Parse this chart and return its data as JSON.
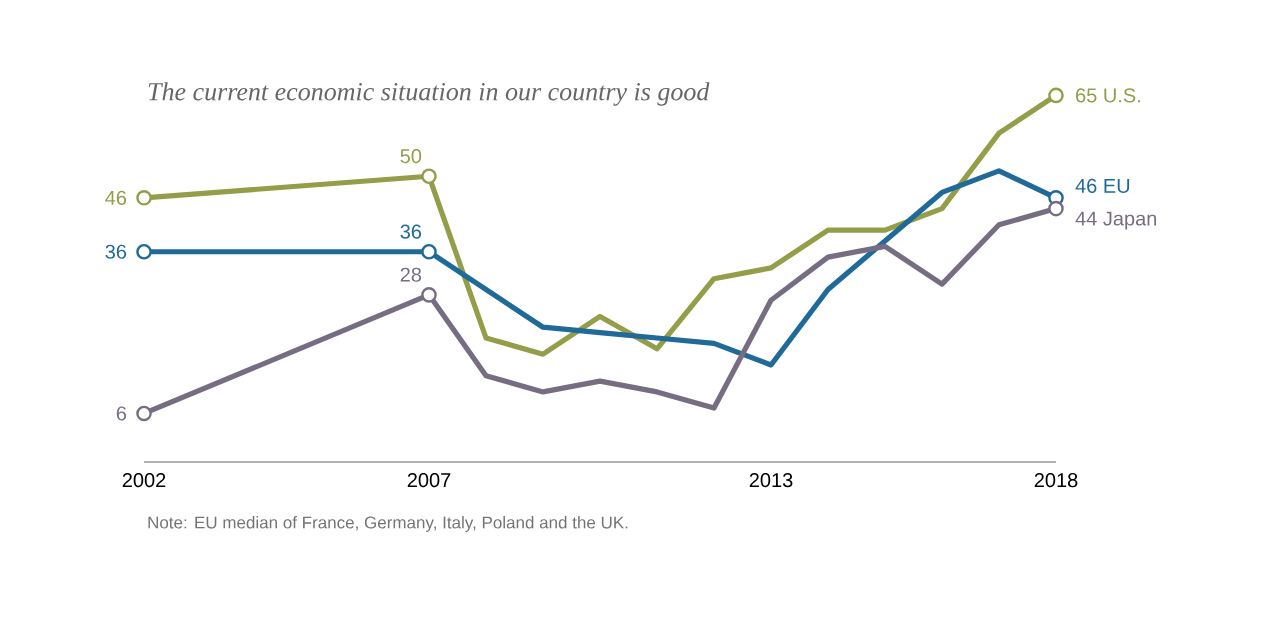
{
  "chart_data": {
    "type": "line",
    "title": "*The current economic situation in our country is good*",
    "x": [
      2002,
      2007,
      2008,
      2009,
      2010,
      2011,
      2012,
      2013,
      2014,
      2015,
      2016,
      2017,
      2018
    ],
    "xlim": [
      2002,
      2018
    ],
    "xticks": [
      2002,
      2007,
      2013,
      2018
    ],
    "tick_labels": "x",
    "line_style": "solid",
    "series": [
      {
        "name": "U.S.",
        "color": "#949d48",
        "values": [
          46,
          50,
          20,
          17,
          24,
          18,
          31,
          33,
          40,
          40,
          44,
          58,
          65
        ],
        "value_labels": [
          "46",
          "50",
          null,
          null,
          null,
          null,
          null,
          null,
          null,
          null,
          null,
          null,
          "65"
        ]
      },
      {
        "name": "EU",
        "color": "#1f6a98",
        "x": [
          2002,
          2007,
          2009,
          2010,
          2011,
          2012,
          2013,
          2014,
          2015,
          2016,
          2017,
          2018
        ],
        "values": [
          36,
          36,
          22,
          21,
          20,
          19,
          15,
          29,
          38,
          47,
          51,
          46
        ],
        "value_labels": [
          "36",
          "36",
          null,
          null,
          null,
          null,
          null,
          null,
          null,
          null,
          null,
          "46"
        ]
      },
      {
        "name": "Japan",
        "color": "#776d82",
        "values": [
          6,
          28,
          13,
          10,
          12,
          10,
          7,
          27,
          35,
          37,
          30,
          41,
          44
        ],
        "value_labels": [
          "6",
          "28",
          null,
          null,
          null,
          null,
          null,
          null,
          null,
          null,
          null,
          null,
          "44"
        ]
      }
    ],
    "annotations": [
      "Note: EU median of France, Germany, Italy, Poland and the UK."
    ]
  }
}
